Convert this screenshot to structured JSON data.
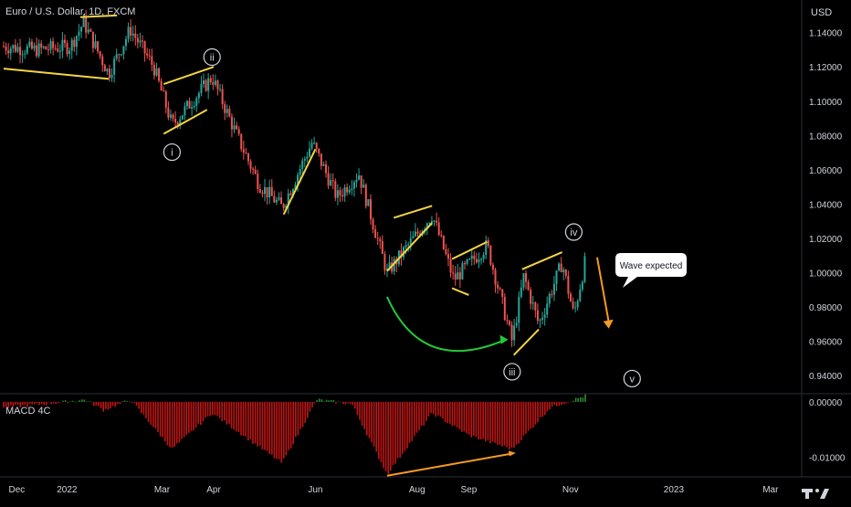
{
  "header": {
    "title": "Euro / U.S. Dollar, 1D, FXCM",
    "currency": "USD"
  },
  "macd": {
    "title": "MACD 4C",
    "ylim": [
      -0.0135,
      0.0013
    ],
    "ticks": [
      {
        "value": 0.0,
        "label": "0.00000"
      },
      {
        "value": -0.01,
        "label": "-0.01000"
      }
    ]
  },
  "annotations": {
    "waves": [
      "i",
      "ii",
      "iii",
      "iv",
      "v"
    ],
    "callout": "Wave expected"
  },
  "colors": {
    "up": "#26a69a",
    "down": "#ef5350",
    "macd_up": "#2e8b2e",
    "macd_down": "#c21414",
    "trendline": "#f5d442",
    "arc": "#22c93a",
    "arrow": "#f59a23"
  },
  "chart_data": {
    "type": "candlestick",
    "title": "Euro / U.S. Dollar, 1D, FXCM",
    "ylabel": "USD",
    "ylim": [
      0.93,
      1.159
    ],
    "x_ticks": [
      "Dec",
      "2022",
      "Mar",
      "Apr",
      "Jun",
      "Aug",
      "Sep",
      "Nov",
      "2023",
      "Mar"
    ],
    "y_ticks": [
      "1.14000",
      "1.12000",
      "1.10000",
      "1.08000",
      "1.06000",
      "1.04000",
      "1.02000",
      "1.00000",
      "0.98000",
      "0.96000",
      "0.94000"
    ],
    "close_path": [
      {
        "date": "2021-11-26",
        "close": 1.132
      },
      {
        "date": "2021-12-15",
        "close": 1.13
      },
      {
        "date": "2022-01-05",
        "close": 1.132
      },
      {
        "date": "2022-01-13",
        "close": 1.146
      },
      {
        "date": "2022-01-28",
        "close": 1.116
      },
      {
        "date": "2022-02-10",
        "close": 1.142
      },
      {
        "date": "2022-02-24",
        "close": 1.12
      },
      {
        "date": "2022-03-07",
        "close": 1.086
      },
      {
        "date": "2022-03-31",
        "close": 1.114
      },
      {
        "date": "2022-04-14",
        "close": 1.082
      },
      {
        "date": "2022-04-28",
        "close": 1.052
      },
      {
        "date": "2022-05-12",
        "close": 1.038
      },
      {
        "date": "2022-05-30",
        "close": 1.076
      },
      {
        "date": "2022-06-14",
        "close": 1.044
      },
      {
        "date": "2022-06-27",
        "close": 1.058
      },
      {
        "date": "2022-07-14",
        "close": 1.0
      },
      {
        "date": "2022-08-10",
        "close": 1.034
      },
      {
        "date": "2022-08-23",
        "close": 0.996
      },
      {
        "date": "2022-09-12",
        "close": 1.016
      },
      {
        "date": "2022-09-27",
        "close": 0.96
      },
      {
        "date": "2022-10-04",
        "close": 0.998
      },
      {
        "date": "2022-10-13",
        "close": 0.97
      },
      {
        "date": "2022-10-27",
        "close": 1.006
      },
      {
        "date": "2022-11-03",
        "close": 0.975
      },
      {
        "date": "2022-11-11",
        "close": 1.012
      }
    ],
    "macd_hist_path": [
      {
        "date": "2021-11-26",
        "value": -0.001
      },
      {
        "date": "2021-12-20",
        "value": -0.0004
      },
      {
        "date": "2022-01-14",
        "value": 0.0004
      },
      {
        "date": "2022-01-25",
        "value": -0.0015
      },
      {
        "date": "2022-02-10",
        "value": 0.0004
      },
      {
        "date": "2022-03-07",
        "value": -0.0085
      },
      {
        "date": "2022-03-31",
        "value": -0.002
      },
      {
        "date": "2022-05-12",
        "value": -0.011
      },
      {
        "date": "2022-06-02",
        "value": 0.0004
      },
      {
        "date": "2022-06-23",
        "value": -0.0004
      },
      {
        "date": "2022-07-14",
        "value": -0.013
      },
      {
        "date": "2022-08-10",
        "value": -0.002
      },
      {
        "date": "2022-09-01",
        "value": -0.006
      },
      {
        "date": "2022-09-27",
        "value": -0.0085
      },
      {
        "date": "2022-10-20",
        "value": -0.001
      },
      {
        "date": "2022-11-03",
        "value": 0.0004
      },
      {
        "date": "2022-11-11",
        "value": 0.0012
      }
    ],
    "wave_labels": [
      {
        "label": "i",
        "date": "2022-03-07",
        "price": 1.082
      },
      {
        "label": "ii",
        "date": "2022-03-31",
        "price": 1.114
      },
      {
        "label": "iii",
        "date": "2022-09-27",
        "price": 0.954
      },
      {
        "label": "iv",
        "date": "2022-11-03",
        "price": 1.012
      },
      {
        "label": "v",
        "date": "2022-12-08",
        "price": 0.95
      }
    ]
  }
}
